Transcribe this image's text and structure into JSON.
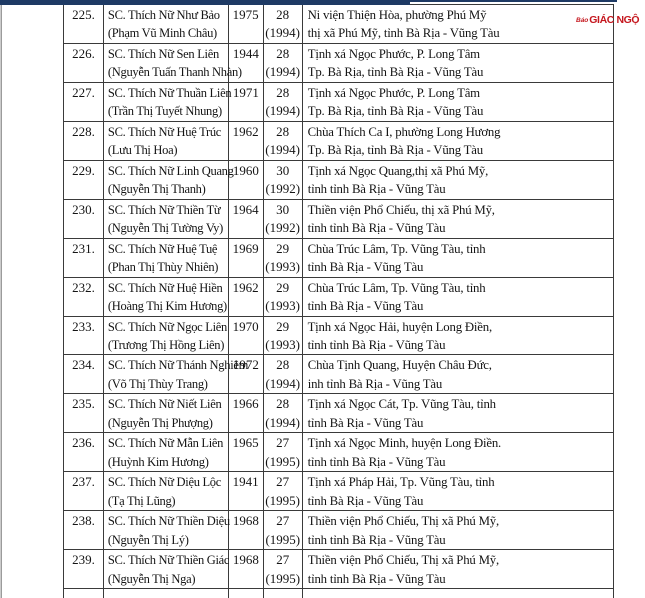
{
  "page": {
    "top_bar_color": "#1e3a64",
    "watermark": {
      "prefix": "Báo",
      "text": "GIÁC NGỘ",
      "color": "#c5161d"
    }
  },
  "table": {
    "rows": [
      {
        "no": "225.",
        "name": "SC. Thích Nữ Như Bảo",
        "birth_name": "(Phạm Vũ Minh Châu)",
        "birth_year": "1975",
        "halap": "28",
        "halap_year": "(1994)",
        "address1": "Ni viện Thiện Hòa, phường Phú Mỹ",
        "address2": "thị xã Phú Mỹ, tỉnh Bà Rịa - Vũng Tàu"
      },
      {
        "no": "226.",
        "name": "SC. Thích Nữ Sen Liên",
        "birth_name": "(Nguyễn Tuấn Thanh Nhàn)",
        "birth_year": "1944",
        "halap": "28",
        "halap_year": "(1994)",
        "address1": "Tịnh xá Ngọc Phước, P. Long Tâm",
        "address2": "Tp. Bà Rịa, tỉnh Bà Rịa - Vũng Tàu"
      },
      {
        "no": "227.",
        "name": "SC. Thích Nữ Thuần Liên",
        "birth_name": "(Trần Thị Tuyết Nhung)",
        "birth_year": "1971",
        "halap": "28",
        "halap_year": "(1994)",
        "address1": "Tịnh xá Ngọc Phước, P. Long Tâm",
        "address2": "Tp. Bà Rịa, tỉnh Bà Rịa - Vũng Tàu"
      },
      {
        "no": "228.",
        "name": "SC. Thích Nữ Huệ Trúc",
        "birth_name": "(Lưu Thị Hoa)",
        "birth_year": "1962",
        "halap": "28",
        "halap_year": "(1994)",
        "address1": "Chùa Thích Ca I, phường Long Hương",
        "address2": "Tp. Bà Rịa, tỉnh Bà Rịa - Vũng Tàu"
      },
      {
        "no": "229.",
        "name": "SC. Thích Nữ Linh Quang",
        "birth_name": "(Nguyễn Thị Thanh)",
        "birth_year": "1960",
        "halap": "30",
        "halap_year": "(1992)",
        "address1": "Tịnh xá Ngọc Quang,thị xã Phú Mỹ,",
        "address2": "tỉnh tỉnh Bà Rịa - Vũng Tàu"
      },
      {
        "no": "230.",
        "name": "SC. Thích Nữ Thiền Từ",
        "birth_name": "(Nguyễn Thị Tường Vy)",
        "birth_year": "1964",
        "halap": "30",
        "halap_year": "(1992)",
        "address1": "Thiền viện Phổ Chiếu, thị xã Phú Mỹ,",
        "address2": "tỉnh tỉnh Bà Rịa - Vũng Tàu"
      },
      {
        "no": "231.",
        "name": "SC. Thích Nữ Huệ Tuệ",
        "birth_name": "(Phan Thị Thùy Nhiên)",
        "birth_year": "1969",
        "halap": "29",
        "halap_year": "(1993)",
        "address1": "Chùa Trúc Lâm, Tp. Vũng Tàu, tỉnh",
        "address2": "tỉnh Bà Rịa - Vũng Tàu"
      },
      {
        "no": "232.",
        "name": "SC. Thích Nữ Huệ Hiền",
        "birth_name": "(Hoàng Thị Kim Hương)",
        "birth_year": "1962",
        "halap": "29",
        "halap_year": "(1993)",
        "address1": "Chùa Trúc Lâm, Tp. Vũng Tàu, tỉnh",
        "address2": "tỉnh Bà Rịa - Vũng Tàu"
      },
      {
        "no": "233.",
        "name": "SC. Thích Nữ Ngọc Liên",
        "birth_name": "(Trương Thị Hồng Liên)",
        "birth_year": "1970",
        "halap": "29",
        "halap_year": "(1993)",
        "address1": "Tịnh xá Ngọc Hải, huyện Long Điền,",
        "address2": "tỉnh tỉnh Bà Rịa - Vũng Tàu"
      },
      {
        "no": "234.",
        "name": "SC. Thích Nữ Thánh Nghiêm",
        "birth_name": "(Võ Thị Thùy Trang)",
        "birth_year": "1972",
        "halap": "28",
        "halap_year": "(1994)",
        "address1": "Chùa Tịnh Quang, Huyện Châu Đức,",
        "address2": "inh tỉnh Bà Rịa - Vũng Tàu"
      },
      {
        "no": "235.",
        "name": "SC. Thích Nữ Niết Liên",
        "birth_name": "(Nguyễn Thị Phượng)",
        "birth_year": "1966",
        "halap": "28",
        "halap_year": "(1994)",
        "address1": "Tịnh xá Ngọc Cát, Tp. Vũng Tàu, tỉnh",
        "address2": "tỉnh Bà Rịa - Vũng Tàu"
      },
      {
        "no": "236.",
        "name": "SC. Thích Nữ Mẫn Liên",
        "birth_name": "(Huỳnh Kim Hương)",
        "birth_year": "1965",
        "halap": "27",
        "halap_year": "(1995)",
        "address1": "Tịnh xá Ngọc Minh, huyện Long Điền.",
        "address2": "tỉnh tỉnh Bà Rịa - Vũng Tàu"
      },
      {
        "no": "237.",
        "name": "SC. Thích Nữ Diệu Lộc",
        "birth_name": "(Tạ Thị Lũng)",
        "birth_year": "1941",
        "halap": "27",
        "halap_year": "(1995)",
        "address1": "Tịnh xá Pháp Hải, Tp. Vũng Tàu, tỉnh",
        "address2": "tỉnh Bà Rịa - Vũng Tàu"
      },
      {
        "no": "238.",
        "name": "SC. Thích Nữ Thiền Diệu",
        "birth_name": "(Nguyễn Thị Lý)",
        "birth_year": "1968",
        "halap": "27",
        "halap_year": "(1995)",
        "address1": "Thiền viện Phổ Chiếu, Thị xã Phú Mỹ,",
        "address2": "tỉnh tỉnh Bà Rịa - Vũng Tàu"
      },
      {
        "no": "239.",
        "name": "SC. Thích Nữ Thiền Giác",
        "birth_name": "(Nguyễn Thị Nga)",
        "birth_year": "1968",
        "halap": "27",
        "halap_year": "(1995)",
        "address1": "Thiền viện Phổ Chiếu, Thị xã Phú Mỹ,",
        "address2": "tỉnh tỉnh Bà Rịa - Vũng Tàu"
      }
    ]
  }
}
